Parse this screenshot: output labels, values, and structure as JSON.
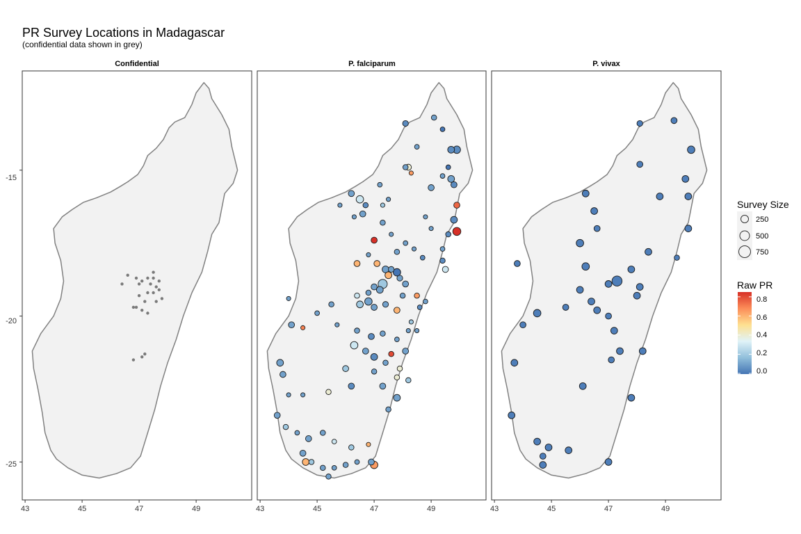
{
  "title": "PR Survey Locations in Madagascar",
  "subtitle": "(confidential data shown in grey)",
  "panels": [
    {
      "id": "conf",
      "label": "Confidential"
    },
    {
      "id": "pf",
      "label": "P. falciparum"
    },
    {
      "id": "pv",
      "label": "P. vivax"
    }
  ],
  "axes": {
    "x_ticks": [
      "43",
      "45",
      "47",
      "49"
    ],
    "x_tick_values": [
      43,
      45,
      47,
      49
    ],
    "y_ticks": [
      "-15",
      "-20",
      "-25"
    ],
    "y_tick_values": [
      -15,
      -20,
      -25
    ],
    "xlim": [
      42.9,
      50.9
    ],
    "ylim": [
      -26.3,
      -11.6
    ]
  },
  "legend": {
    "size_title": "Survey Size",
    "size_labels": [
      "250",
      "500",
      "750"
    ],
    "size_values": [
      250,
      500,
      750
    ],
    "color_title": "Raw PR",
    "color_labels": [
      "0.8",
      "0.6",
      "0.4",
      "0.2",
      "0.0"
    ],
    "color_values": [
      0.8,
      0.6,
      0.4,
      0.2,
      0.0
    ]
  },
  "colors": {
    "land": "#f2f2f2",
    "coast": "#808080",
    "confidential_point": "#7a7a7a",
    "scale": [
      "#4575b4",
      "#91bfdb",
      "#e0f3f8",
      "#fee090",
      "#fc8d59",
      "#d73027"
    ]
  },
  "island_outline": [
    [
      49.27,
      -12.0
    ],
    [
      49.45,
      -12.2
    ],
    [
      49.55,
      -12.55
    ],
    [
      49.9,
      -13.1
    ],
    [
      50.15,
      -13.6
    ],
    [
      50.25,
      -14.2
    ],
    [
      50.45,
      -15.0
    ],
    [
      50.3,
      -15.45
    ],
    [
      50.0,
      -15.8
    ],
    [
      49.9,
      -16.3
    ],
    [
      49.8,
      -16.8
    ],
    [
      49.55,
      -17.2
    ],
    [
      49.4,
      -17.8
    ],
    [
      49.2,
      -18.5
    ],
    [
      48.85,
      -19.2
    ],
    [
      48.55,
      -20.0
    ],
    [
      48.3,
      -20.8
    ],
    [
      48.0,
      -21.6
    ],
    [
      47.75,
      -22.4
    ],
    [
      47.55,
      -23.2
    ],
    [
      47.3,
      -24.0
    ],
    [
      47.05,
      -24.8
    ],
    [
      46.7,
      -25.2
    ],
    [
      46.2,
      -25.4
    ],
    [
      45.6,
      -25.55
    ],
    [
      45.0,
      -25.45
    ],
    [
      44.5,
      -25.2
    ],
    [
      44.1,
      -24.9
    ],
    [
      43.9,
      -24.6
    ],
    [
      43.7,
      -24.0
    ],
    [
      43.6,
      -23.3
    ],
    [
      43.45,
      -22.5
    ],
    [
      43.3,
      -21.8
    ],
    [
      43.25,
      -21.2
    ],
    [
      43.55,
      -20.6
    ],
    [
      44.0,
      -20.0
    ],
    [
      44.25,
      -19.4
    ],
    [
      44.35,
      -18.8
    ],
    [
      44.25,
      -18.1
    ],
    [
      44.05,
      -17.5
    ],
    [
      44.0,
      -17.0
    ],
    [
      44.3,
      -16.6
    ],
    [
      44.65,
      -16.35
    ],
    [
      45.05,
      -16.1
    ],
    [
      45.5,
      -15.95
    ],
    [
      46.0,
      -15.75
    ],
    [
      46.35,
      -15.55
    ],
    [
      46.6,
      -15.4
    ],
    [
      46.95,
      -15.15
    ],
    [
      47.15,
      -14.85
    ],
    [
      47.3,
      -14.5
    ],
    [
      47.6,
      -14.25
    ],
    [
      47.85,
      -13.95
    ],
    [
      48.05,
      -13.55
    ],
    [
      48.25,
      -13.35
    ],
    [
      48.6,
      -13.2
    ],
    [
      48.85,
      -12.75
    ],
    [
      49.0,
      -12.35
    ],
    [
      49.27,
      -12.0
    ]
  ],
  "confidential_points": [
    [
      46.6,
      -18.6
    ],
    [
      46.9,
      -18.7
    ],
    [
      47.1,
      -18.8
    ],
    [
      47.3,
      -18.7
    ],
    [
      47.5,
      -18.5
    ],
    [
      47.4,
      -18.9
    ],
    [
      47.6,
      -19.0
    ],
    [
      47.7,
      -19.1
    ],
    [
      47.5,
      -19.2
    ],
    [
      47.3,
      -19.2
    ],
    [
      47.0,
      -19.3
    ],
    [
      47.2,
      -19.5
    ],
    [
      47.6,
      -19.5
    ],
    [
      47.8,
      -19.4
    ],
    [
      46.9,
      -19.7
    ],
    [
      47.1,
      -19.8
    ],
    [
      47.3,
      -19.9
    ],
    [
      47.0,
      -18.9
    ],
    [
      47.5,
      -18.7
    ],
    [
      47.7,
      -18.8
    ],
    [
      46.4,
      -18.9
    ],
    [
      47.2,
      -21.3
    ],
    [
      47.1,
      -21.4
    ],
    [
      46.8,
      -21.5
    ],
    [
      46.8,
      -19.7
    ]
  ],
  "pf_points": [
    [
      48.1,
      -13.4,
      180,
      0.05
    ],
    [
      49.1,
      -13.2,
      150,
      0.1
    ],
    [
      49.4,
      -13.6,
      120,
      0.0
    ],
    [
      49.7,
      -14.3,
      250,
      0.05
    ],
    [
      49.9,
      -14.3,
      300,
      0.05
    ],
    [
      48.5,
      -14.2,
      120,
      0.1
    ],
    [
      48.2,
      -14.9,
      200,
      0.4
    ],
    [
      48.1,
      -14.9,
      150,
      0.1
    ],
    [
      48.3,
      -15.1,
      100,
      0.65
    ],
    [
      49.6,
      -14.9,
      120,
      0.0
    ],
    [
      49.7,
      -15.3,
      250,
      0.1
    ],
    [
      49.8,
      -15.5,
      200,
      0.05
    ],
    [
      49.4,
      -15.2,
      120,
      0.1
    ],
    [
      49.0,
      -15.6,
      200,
      0.1
    ],
    [
      47.2,
      -15.5,
      120,
      0.1
    ],
    [
      47.5,
      -16.0,
      100,
      0.1
    ],
    [
      46.2,
      -15.8,
      200,
      0.1
    ],
    [
      46.5,
      -16.0,
      300,
      0.3
    ],
    [
      46.7,
      -16.2,
      150,
      0.05
    ],
    [
      46.6,
      -16.5,
      200,
      0.1
    ],
    [
      45.8,
      -16.2,
      100,
      0.1
    ],
    [
      46.3,
      -16.6,
      100,
      0.1
    ],
    [
      47.3,
      -16.8,
      150,
      0.1
    ],
    [
      47.6,
      -17.2,
      100,
      0.1
    ],
    [
      47.0,
      -17.4,
      200,
      0.85
    ],
    [
      46.8,
      -17.9,
      100,
      0.1
    ],
    [
      47.8,
      -17.8,
      150,
      0.1
    ],
    [
      48.1,
      -17.5,
      120,
      0.1
    ],
    [
      48.4,
      -17.7,
      100,
      0.1
    ],
    [
      49.9,
      -16.2,
      200,
      0.75
    ],
    [
      49.8,
      -16.7,
      250,
      0.05
    ],
    [
      49.9,
      -17.1,
      350,
      0.85
    ],
    [
      49.6,
      -17.2,
      150,
      0.05
    ],
    [
      49.4,
      -17.7,
      120,
      0.1
    ],
    [
      49.4,
      -18.1,
      150,
      0.05
    ],
    [
      49.5,
      -18.4,
      200,
      0.3
    ],
    [
      46.4,
      -18.2,
      200,
      0.6
    ],
    [
      47.1,
      -18.2,
      200,
      0.6
    ],
    [
      47.4,
      -18.4,
      250,
      0.1
    ],
    [
      47.5,
      -18.6,
      250,
      0.6
    ],
    [
      47.6,
      -18.4,
      180,
      0.1
    ],
    [
      47.8,
      -18.5,
      300,
      0.0
    ],
    [
      47.9,
      -18.7,
      180,
      0.1
    ],
    [
      48.1,
      -18.9,
      200,
      0.1
    ],
    [
      47.3,
      -18.9,
      450,
      0.2
    ],
    [
      47.2,
      -19.1,
      250,
      0.1
    ],
    [
      47.0,
      -19.0,
      200,
      0.1
    ],
    [
      46.8,
      -19.2,
      150,
      0.1
    ],
    [
      46.4,
      -19.3,
      150,
      0.3
    ],
    [
      46.5,
      -19.6,
      250,
      0.2
    ],
    [
      46.8,
      -19.5,
      300,
      0.1
    ],
    [
      47.0,
      -19.7,
      200,
      0.1
    ],
    [
      47.4,
      -19.6,
      180,
      0.1
    ],
    [
      47.8,
      -19.8,
      200,
      0.6
    ],
    [
      48.0,
      -19.3,
      150,
      0.1
    ],
    [
      48.5,
      -19.3,
      150,
      0.65
    ],
    [
      48.6,
      -19.7,
      120,
      0.05
    ],
    [
      48.8,
      -19.5,
      120,
      0.1
    ],
    [
      45.5,
      -19.6,
      150,
      0.1
    ],
    [
      45.0,
      -19.9,
      120,
      0.1
    ],
    [
      44.0,
      -19.4,
      100,
      0.1
    ],
    [
      44.1,
      -20.3,
      200,
      0.1
    ],
    [
      44.5,
      -20.4,
      100,
      0.7
    ],
    [
      45.7,
      -20.3,
      100,
      0.1
    ],
    [
      46.4,
      -20.5,
      150,
      0.1
    ],
    [
      46.9,
      -20.7,
      200,
      0.05
    ],
    [
      47.3,
      -20.6,
      150,
      0.1
    ],
    [
      47.8,
      -20.8,
      120,
      0.1
    ],
    [
      48.2,
      -20.5,
      100,
      0.1
    ],
    [
      48.5,
      -20.5,
      100,
      0.1
    ],
    [
      46.3,
      -21.0,
      300,
      0.3
    ],
    [
      46.7,
      -21.2,
      200,
      0.1
    ],
    [
      47.0,
      -21.4,
      250,
      0.05
    ],
    [
      47.4,
      -21.6,
      150,
      0.1
    ],
    [
      48.1,
      -21.2,
      200,
      0.1
    ],
    [
      47.9,
      -21.8,
      150,
      0.4
    ],
    [
      46.0,
      -21.8,
      200,
      0.2
    ],
    [
      47.0,
      -21.9,
      150,
      0.1
    ],
    [
      47.8,
      -22.1,
      150,
      0.4
    ],
    [
      43.7,
      -21.6,
      250,
      0.1
    ],
    [
      43.8,
      -22.0,
      200,
      0.1
    ],
    [
      44.0,
      -22.7,
      100,
      0.1
    ],
    [
      44.5,
      -22.7,
      100,
      0.1
    ],
    [
      45.4,
      -22.6,
      150,
      0.4
    ],
    [
      46.2,
      -22.4,
      200,
      0.05
    ],
    [
      47.3,
      -22.4,
      200,
      0.1
    ],
    [
      47.8,
      -22.8,
      250,
      0.1
    ],
    [
      47.5,
      -23.2,
      150,
      0.1
    ],
    [
      43.6,
      -23.4,
      200,
      0.1
    ],
    [
      43.9,
      -23.8,
      150,
      0.2
    ],
    [
      44.3,
      -24.0,
      120,
      0.1
    ],
    [
      44.7,
      -24.2,
      200,
      0.1
    ],
    [
      45.2,
      -24.0,
      150,
      0.1
    ],
    [
      45.6,
      -24.3,
      120,
      0.3
    ],
    [
      46.2,
      -24.5,
      150,
      0.2
    ],
    [
      46.8,
      -24.4,
      100,
      0.6
    ],
    [
      44.5,
      -24.7,
      200,
      0.1
    ],
    [
      44.8,
      -25.0,
      150,
      0.2
    ],
    [
      45.2,
      -25.2,
      150,
      0.1
    ],
    [
      45.6,
      -25.2,
      120,
      0.1
    ],
    [
      46.0,
      -25.1,
      150,
      0.1
    ],
    [
      46.4,
      -25.0,
      120,
      0.1
    ],
    [
      46.9,
      -25.0,
      200,
      0.1
    ],
    [
      47.0,
      -25.1,
      300,
      0.65
    ],
    [
      45.4,
      -25.5,
      150,
      0.1
    ],
    [
      44.6,
      -25.0,
      250,
      0.6
    ],
    [
      47.6,
      -21.3,
      150,
      0.8
    ],
    [
      48.2,
      -22.2,
      150,
      0.2
    ],
    [
      48.3,
      -20.2,
      100,
      0.2
    ],
    [
      49.0,
      -17.0,
      100,
      0.1
    ],
    [
      48.7,
      -18.0,
      120,
      0.05
    ],
    [
      47.3,
      -16.2,
      100,
      0.2
    ],
    [
      48.8,
      -16.6,
      100,
      0.1
    ]
  ],
  "pv_points": [
    [
      48.1,
      -13.4,
      180
    ],
    [
      49.3,
      -13.3,
      200
    ],
    [
      49.9,
      -14.3,
      300
    ],
    [
      48.1,
      -14.8,
      200
    ],
    [
      49.7,
      -15.3,
      250
    ],
    [
      49.8,
      -15.9,
      250
    ],
    [
      48.8,
      -15.9,
      250
    ],
    [
      46.2,
      -15.8,
      250
    ],
    [
      46.5,
      -16.4,
      250
    ],
    [
      46.6,
      -17.0,
      200
    ],
    [
      49.8,
      -17.0,
      250
    ],
    [
      49.4,
      -18.0,
      150
    ],
    [
      48.4,
      -17.8,
      250
    ],
    [
      46.0,
      -17.5,
      300
    ],
    [
      43.8,
      -18.2,
      200
    ],
    [
      46.2,
      -18.3,
      300
    ],
    [
      47.3,
      -18.8,
      550
    ],
    [
      47.0,
      -18.9,
      250
    ],
    [
      47.8,
      -18.4,
      250
    ],
    [
      48.1,
      -19.0,
      250
    ],
    [
      46.0,
      -19.1,
      250
    ],
    [
      46.4,
      -19.5,
      250
    ],
    [
      45.5,
      -19.7,
      200
    ],
    [
      44.5,
      -19.9,
      300
    ],
    [
      46.6,
      -19.8,
      250
    ],
    [
      47.0,
      -20.0,
      200
    ],
    [
      48.0,
      -19.3,
      250
    ],
    [
      44.0,
      -20.3,
      200
    ],
    [
      47.2,
      -20.5,
      250
    ],
    [
      47.4,
      -21.2,
      250
    ],
    [
      47.1,
      -21.5,
      200
    ],
    [
      48.2,
      -21.2,
      250
    ],
    [
      43.7,
      -21.6,
      250
    ],
    [
      46.1,
      -22.4,
      250
    ],
    [
      47.8,
      -22.8,
      250
    ],
    [
      43.6,
      -23.4,
      250
    ],
    [
      44.5,
      -24.3,
      250
    ],
    [
      44.9,
      -24.5,
      250
    ],
    [
      44.7,
      -24.8,
      200
    ],
    [
      45.6,
      -24.6,
      250
    ],
    [
      44.7,
      -25.1,
      250
    ],
    [
      47.0,
      -25.0,
      250
    ]
  ]
}
